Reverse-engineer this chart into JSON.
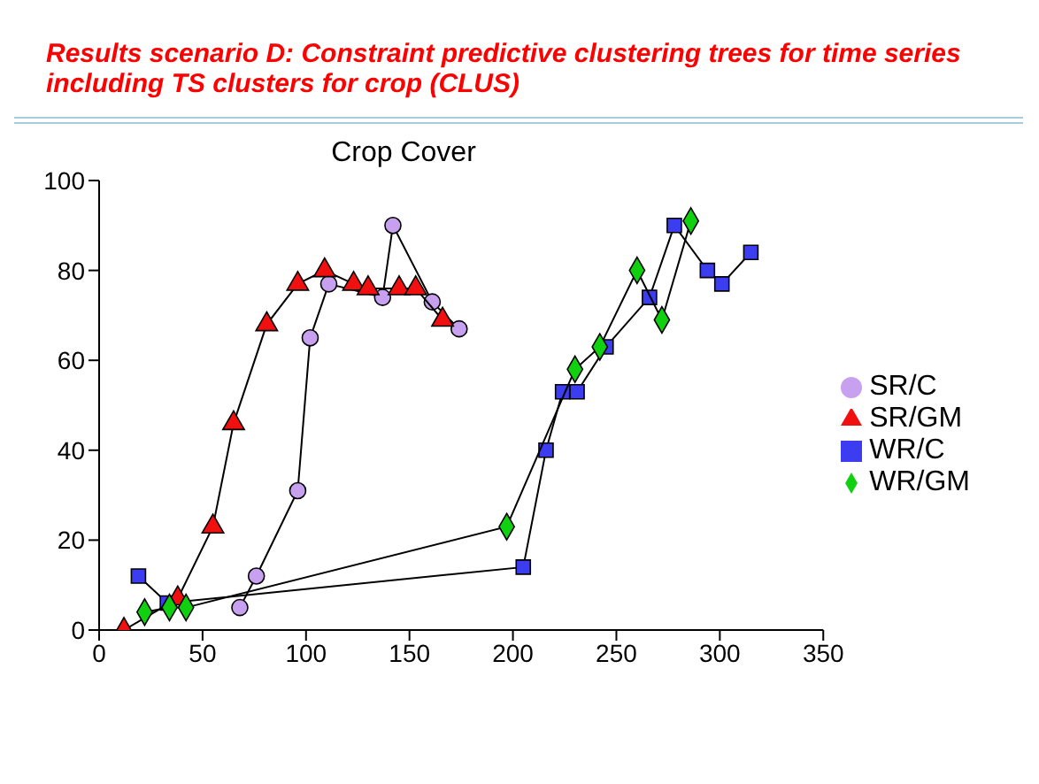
{
  "chart_data": {
    "type": "line",
    "title": "Results scenario D: Constraint predictive clustering trees for time series including TS clusters for crop (CLUS)",
    "subtitle": "Crop Cover",
    "xlim": [
      0,
      350
    ],
    "xticks": [
      0,
      50,
      100,
      150,
      200,
      250,
      300,
      350
    ],
    "ylim": [
      0,
      100
    ],
    "yticks": [
      0,
      20,
      40,
      60,
      80,
      100
    ],
    "grid": false,
    "legend": "right",
    "series": [
      {
        "name": "SR/C",
        "color": "#c8a0f0",
        "marker": "circle",
        "x": [
          68,
          76,
          96,
          102,
          111,
          137,
          142,
          161,
          174
        ],
        "values": [
          5,
          12,
          31,
          65,
          77,
          74,
          90,
          73,
          67
        ]
      },
      {
        "name": "WR/C",
        "color": "#3c3cf0",
        "marker": "square",
        "x": [
          19,
          33,
          205,
          216,
          224,
          231,
          245,
          266,
          278,
          294,
          301,
          315
        ],
        "values": [
          12,
          6,
          14,
          40,
          53,
          53,
          63,
          74,
          90,
          80,
          77,
          84
        ]
      },
      {
        "name": "SR/GM",
        "color": "#f01010",
        "marker": "triangle",
        "x": [
          12,
          38,
          55,
          65,
          81,
          96,
          109,
          123,
          130,
          145,
          153,
          166
        ],
        "values": [
          0,
          7,
          23,
          46,
          68,
          77,
          80,
          77,
          76,
          76,
          76,
          69
        ]
      },
      {
        "name": "WR/GM",
        "color": "#10d010",
        "marker": "diamond",
        "x": [
          22,
          34,
          42,
          197,
          230,
          242,
          260,
          272,
          286
        ],
        "values": [
          4,
          5,
          5,
          23,
          58,
          63,
          80,
          69,
          91
        ]
      }
    ]
  }
}
